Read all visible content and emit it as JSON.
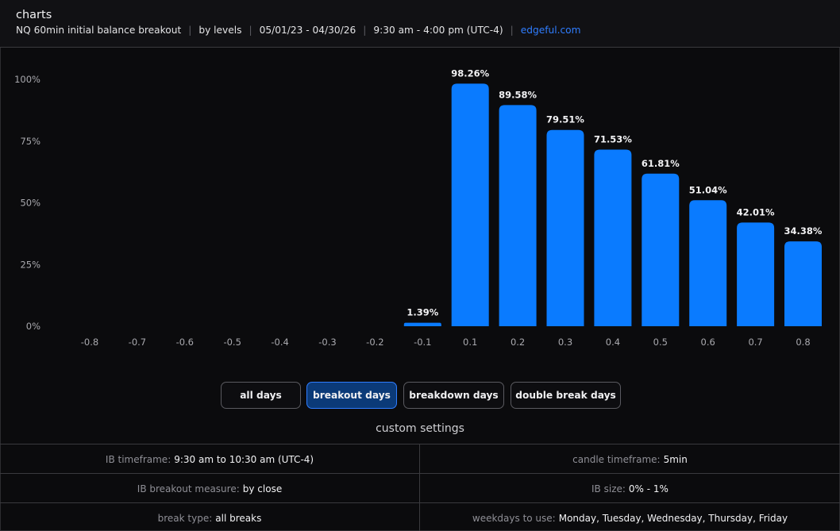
{
  "header": {
    "title": "charts",
    "instrument": "NQ 60min initial balance breakout",
    "grouping": "by levels",
    "date_range": "05/01/23 - 04/30/26",
    "session": "9:30 am - 4:00 pm (UTC-4)",
    "site": "edgeful.com"
  },
  "chart_data": {
    "type": "bar",
    "categories": [
      "-0.8",
      "-0.7",
      "-0.6",
      "-0.5",
      "-0.4",
      "-0.3",
      "-0.2",
      "-0.1",
      "0.1",
      "0.2",
      "0.3",
      "0.4",
      "0.5",
      "0.6",
      "0.7",
      "0.8"
    ],
    "values": [
      0,
      0,
      0,
      0,
      0,
      0,
      0,
      1.39,
      98.26,
      89.58,
      79.51,
      71.53,
      61.81,
      51.04,
      42.01,
      34.38
    ],
    "data_labels": [
      "",
      "",
      "",
      "",
      "",
      "",
      "",
      "1.39%",
      "98.26%",
      "89.58%",
      "79.51%",
      "71.53%",
      "61.81%",
      "51.04%",
      "42.01%",
      "34.38%"
    ],
    "y_ticks": [
      0,
      25,
      50,
      75,
      100
    ],
    "y_tick_labels": [
      "0%",
      "25%",
      "50%",
      "75%",
      "100%"
    ],
    "ylim": [
      0,
      100
    ],
    "bar_color": "#0a7bff",
    "grid": false
  },
  "filters": {
    "buttons": [
      "all days",
      "breakout days",
      "breakdown days",
      "double break days"
    ],
    "active": "breakout days"
  },
  "custom_settings": {
    "title": "custom settings",
    "rows": [
      {
        "left_label": "IB timeframe:",
        "left_value": "9:30 am to 10:30 am (UTC-4)",
        "right_label": "candle timeframe:",
        "right_value": "5min"
      },
      {
        "left_label": "IB breakout measure:",
        "left_value": "by close",
        "right_label": "IB size:",
        "right_value": "0% - 1%"
      },
      {
        "left_label": "break type:",
        "left_value": "all breaks",
        "right_label": "weekdays to use:",
        "right_value": "Monday, Tuesday, Wednesday, Thursday, Friday"
      }
    ]
  },
  "colors": {
    "background": "#0b0b0d",
    "accent": "#0a7bff",
    "link": "#2f7dff",
    "active_button": "#0b3a78"
  }
}
